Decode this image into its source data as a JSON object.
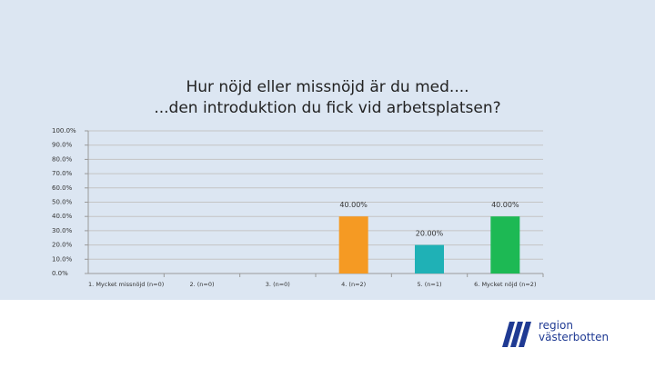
{
  "chart_data": {
    "type": "bar",
    "title_line1": "Hur nöjd eller missnöjd är du med....",
    "title_line2": "...den introduktion du fick vid arbetsplatsen?",
    "categories": [
      "1. Mycket missnöjd (n=0)",
      "2. (n=0)",
      "3. (n=0)",
      "4. (n=2)",
      "5. (n=1)",
      "6. Mycket nöjd (n=2)"
    ],
    "values": [
      0,
      0,
      0,
      40,
      20,
      40
    ],
    "data_labels": [
      "",
      "",
      "",
      "40.00%",
      "20.00%",
      "40.00%"
    ],
    "colors": [
      "#f59a23",
      "#f59a23",
      "#f59a23",
      "#f59a23",
      "#1fb1b6",
      "#1db954"
    ],
    "ylim": [
      0,
      100
    ],
    "yticks": [
      "0.0%",
      "10.0%",
      "20.0%",
      "30.0%",
      "40.0%",
      "50.0%",
      "60.0%",
      "70.0%",
      "80.0%",
      "90.0%",
      "100.0%"
    ],
    "grid": true,
    "xlabel": "",
    "ylabel": ""
  },
  "logo": {
    "line1": "region",
    "line2": "västerbotten",
    "color": "#1f3a93"
  }
}
